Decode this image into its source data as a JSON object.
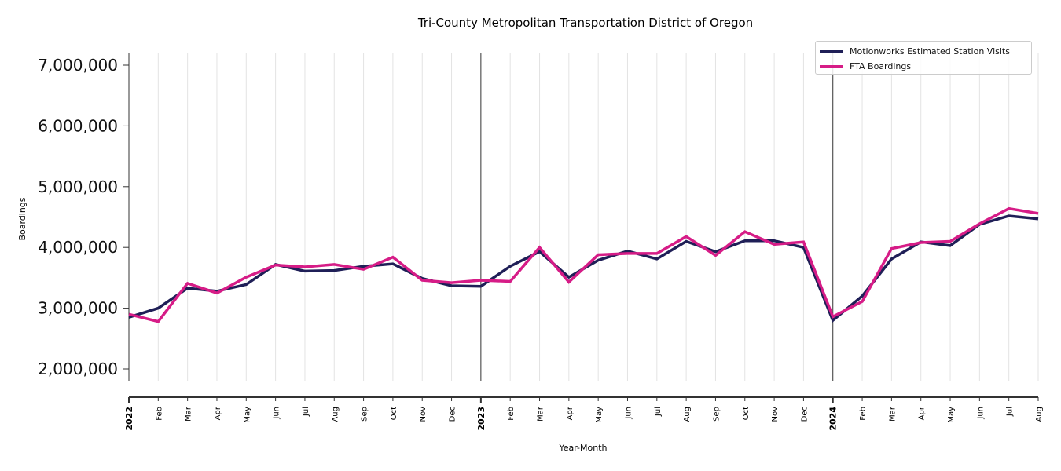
{
  "chart_data": {
    "type": "line",
    "title": "Tri-County Metropolitan Transportation District of Oregon",
    "xlabel": "Year-Month",
    "ylabel": "Boardings",
    "ylim": [
      1800000,
      7200000
    ],
    "yticks": [
      2000000,
      3000000,
      4000000,
      5000000,
      6000000,
      7000000
    ],
    "ytick_labels": [
      "2,000,000",
      "3,000,000",
      "4,000,000",
      "5,000,000",
      "6,000,000",
      "7,000,000"
    ],
    "grid": "vertical",
    "legend_position": "top-right",
    "year_markers": [
      "2022",
      "2023",
      "2024"
    ],
    "x": [
      "2022",
      "Feb",
      "Mar",
      "Apr",
      "May",
      "Jun",
      "Jul",
      "Aug",
      "Sep",
      "Oct",
      "Nov",
      "Dec",
      "2023",
      "Feb",
      "Mar",
      "Apr",
      "May",
      "Jun",
      "Jul",
      "Aug",
      "Sep",
      "Oct",
      "Nov",
      "Dec",
      "2024",
      "Feb",
      "Mar",
      "Apr",
      "May",
      "Jun",
      "Jul",
      "Aug"
    ],
    "series": [
      {
        "name": "Motionworks Estimated Station Visits",
        "color": "#1f1f57",
        "values": [
          2850000,
          3000000,
          3330000,
          3280000,
          3390000,
          3720000,
          3610000,
          3620000,
          3690000,
          3730000,
          3490000,
          3370000,
          3360000,
          3690000,
          3930000,
          3510000,
          3790000,
          3940000,
          3810000,
          4100000,
          3930000,
          4110000,
          4110000,
          4000000,
          2800000,
          3200000,
          3810000,
          4090000,
          4030000,
          4380000,
          4520000,
          4470000
        ]
      },
      {
        "name": "FTA Boardings",
        "color": "#d61c87",
        "values": [
          2900000,
          2780000,
          3410000,
          3250000,
          3510000,
          3710000,
          3680000,
          3720000,
          3640000,
          3840000,
          3460000,
          3420000,
          3460000,
          3440000,
          4000000,
          3430000,
          3880000,
          3900000,
          3900000,
          4180000,
          3870000,
          4260000,
          4050000,
          4090000,
          2860000,
          3110000,
          3980000,
          4080000,
          4100000,
          4390000,
          4640000,
          4560000
        ]
      }
    ]
  }
}
